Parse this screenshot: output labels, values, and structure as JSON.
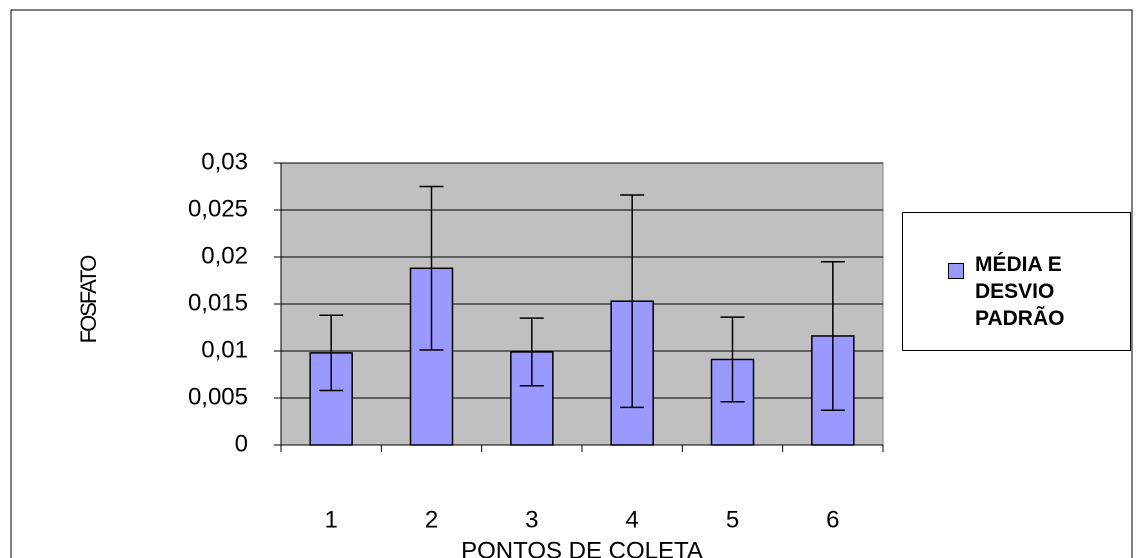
{
  "chart_data": {
    "type": "bar",
    "categories": [
      "1",
      "2",
      "3",
      "4",
      "5",
      "6"
    ],
    "x_label": "PONTOS DE COLETA",
    "y_label": "FOSFATO",
    "series": [
      {
        "name": "MÉDIA E DESVIO PADRÃO",
        "color": "#9999ff",
        "values": [
          0.0098,
          0.0188,
          0.0099,
          0.0153,
          0.0091,
          0.0116
        ],
        "errors": [
          0.004,
          0.0087,
          0.0036,
          0.0113,
          0.0045,
          0.0079
        ]
      }
    ],
    "ylim": [
      0,
      0.03
    ],
    "yticks": [
      0,
      {
        "value": 0.005,
        "label": "0,005"
      },
      {
        "value": 0.01,
        "label": "0,01"
      },
      {
        "value": 0.015,
        "label": "0,015"
      },
      {
        "value": 0.02,
        "label": "0,02"
      },
      {
        "value": 0.025,
        "label": "0,025"
      },
      {
        "value": 0.03,
        "label": "0,03"
      }
    ],
    "grid": true
  }
}
